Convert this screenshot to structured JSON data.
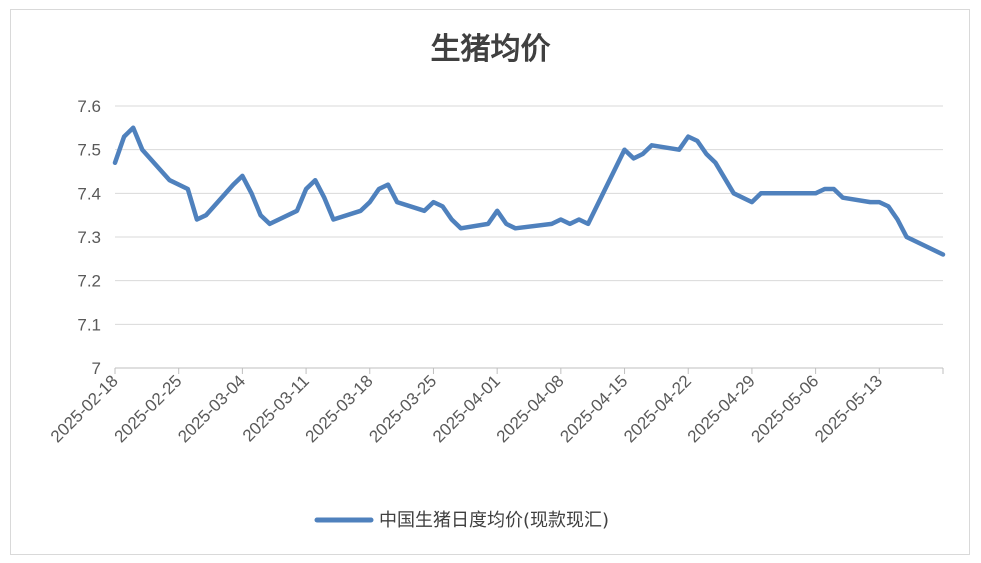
{
  "chart_data": {
    "type": "line",
    "title": "生猪均价",
    "xlabel": "",
    "ylabel": "",
    "ylim": [
      7,
      7.6
    ],
    "yticks": [
      "7",
      "7.1",
      "7.2",
      "7.3",
      "7.4",
      "7.5",
      "7.6"
    ],
    "xlim": [
      "2025-02-18",
      "2025-05-20"
    ],
    "xticks": [
      "2025-02-18",
      "2025-02-25",
      "2025-03-04",
      "2025-03-11",
      "2025-03-18",
      "2025-03-25",
      "2025-04-01",
      "2025-04-08",
      "2025-04-15",
      "2025-04-22",
      "2025-04-29",
      "2025-05-06",
      "2025-05-13"
    ],
    "grid": "horizontal",
    "legend_position": "bottom",
    "colors": {
      "series": "#4f81bd",
      "grid": "#d9d9d9",
      "axis": "#bfbfbf"
    },
    "series": [
      {
        "name": "中国生猪日度均价(现款现汇)",
        "points": [
          [
            "2025-02-18",
            7.47
          ],
          [
            "2025-02-19",
            7.53
          ],
          [
            "2025-02-20",
            7.55
          ],
          [
            "2025-02-21",
            7.5
          ],
          [
            "2025-02-24",
            7.43
          ],
          [
            "2025-02-26",
            7.41
          ],
          [
            "2025-02-27",
            7.34
          ],
          [
            "2025-02-28",
            7.35
          ],
          [
            "2025-03-03",
            7.42
          ],
          [
            "2025-03-04",
            7.44
          ],
          [
            "2025-03-05",
            7.4
          ],
          [
            "2025-03-06",
            7.35
          ],
          [
            "2025-03-07",
            7.33
          ],
          [
            "2025-03-10",
            7.36
          ],
          [
            "2025-03-11",
            7.41
          ],
          [
            "2025-03-12",
            7.43
          ],
          [
            "2025-03-13",
            7.39
          ],
          [
            "2025-03-14",
            7.34
          ],
          [
            "2025-03-17",
            7.36
          ],
          [
            "2025-03-18",
            7.38
          ],
          [
            "2025-03-19",
            7.41
          ],
          [
            "2025-03-20",
            7.42
          ],
          [
            "2025-03-21",
            7.38
          ],
          [
            "2025-03-24",
            7.36
          ],
          [
            "2025-03-25",
            7.38
          ],
          [
            "2025-03-26",
            7.37
          ],
          [
            "2025-03-27",
            7.34
          ],
          [
            "2025-03-28",
            7.32
          ],
          [
            "2025-03-31",
            7.33
          ],
          [
            "2025-04-01",
            7.36
          ],
          [
            "2025-04-02",
            7.33
          ],
          [
            "2025-04-03",
            7.32
          ],
          [
            "2025-04-07",
            7.33
          ],
          [
            "2025-04-08",
            7.34
          ],
          [
            "2025-04-09",
            7.33
          ],
          [
            "2025-04-10",
            7.34
          ],
          [
            "2025-04-11",
            7.33
          ],
          [
            "2025-04-15",
            7.5
          ],
          [
            "2025-04-16",
            7.48
          ],
          [
            "2025-04-17",
            7.49
          ],
          [
            "2025-04-18",
            7.51
          ],
          [
            "2025-04-21",
            7.5
          ],
          [
            "2025-04-22",
            7.53
          ],
          [
            "2025-04-23",
            7.52
          ],
          [
            "2025-04-24",
            7.49
          ],
          [
            "2025-04-25",
            7.47
          ],
          [
            "2025-04-27",
            7.4
          ],
          [
            "2025-04-29",
            7.38
          ],
          [
            "2025-04-30",
            7.4
          ],
          [
            "2025-05-06",
            7.4
          ],
          [
            "2025-05-07",
            7.41
          ],
          [
            "2025-05-08",
            7.41
          ],
          [
            "2025-05-09",
            7.39
          ],
          [
            "2025-05-12",
            7.38
          ],
          [
            "2025-05-13",
            7.38
          ],
          [
            "2025-05-14",
            7.37
          ],
          [
            "2025-05-15",
            7.34
          ],
          [
            "2025-05-16",
            7.3
          ],
          [
            "2025-05-20",
            7.26
          ]
        ]
      }
    ]
  }
}
